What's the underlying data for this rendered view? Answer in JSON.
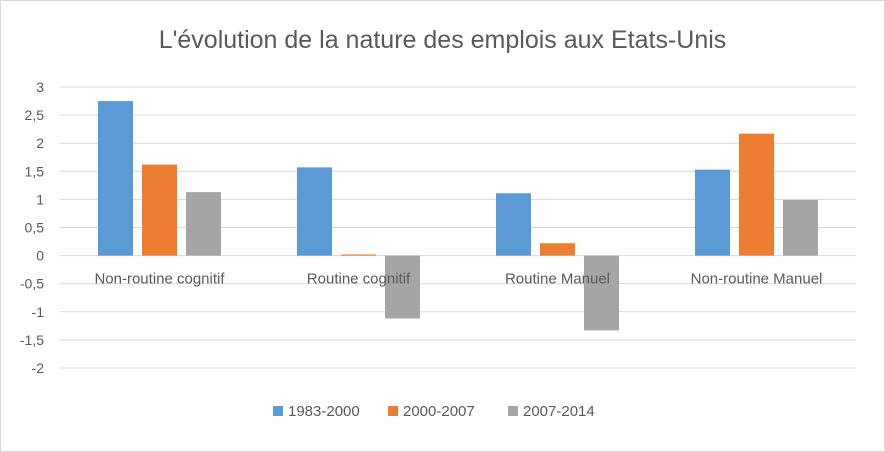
{
  "chart_data": {
    "type": "bar",
    "title": "L'évolution de la nature des emplois aux Etats-Unis",
    "categories": [
      "Non-routine cognitif",
      "Routine cognitif",
      "Routine Manuel",
      "Non-routine Manuel"
    ],
    "series": [
      {
        "name": "1983-2000",
        "color": "#5b9bd5",
        "values": [
          2.75,
          1.57,
          1.11,
          1.53
        ]
      },
      {
        "name": "2000-2007",
        "color": "#ed7d31",
        "values": [
          1.62,
          0.02,
          0.22,
          2.17
        ]
      },
      {
        "name": "2007-2014",
        "color": "#a5a5a5",
        "values": [
          1.13,
          -1.12,
          -1.33,
          0.99
        ]
      }
    ],
    "yticks": [
      "3",
      "2,5",
      "2",
      "1,5",
      "1",
      "0,5",
      "0",
      "-0,5",
      "-1",
      "-1,5",
      "-2"
    ],
    "ylim": [
      -2,
      3
    ],
    "grid": true,
    "legend": "bottom",
    "xlabel": "",
    "ylabel": ""
  }
}
